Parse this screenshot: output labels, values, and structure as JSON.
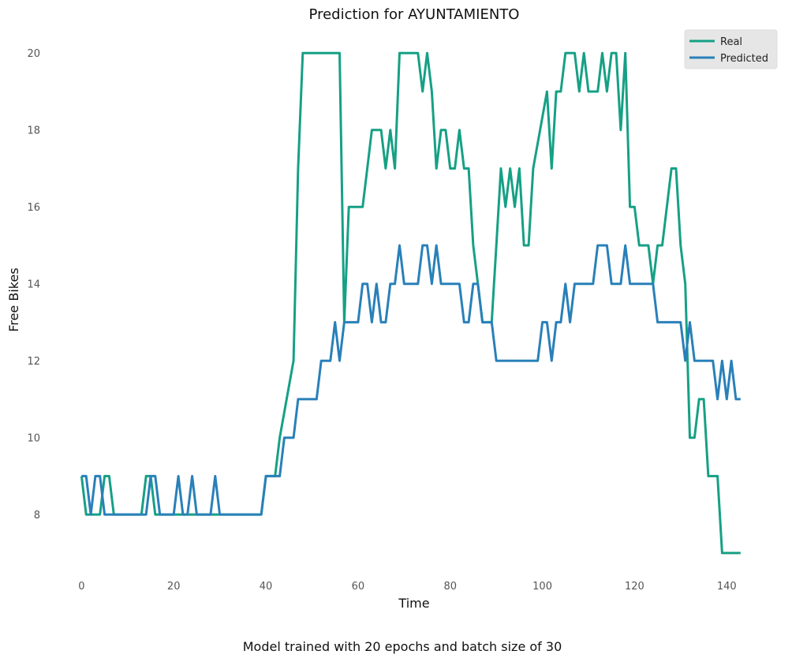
{
  "chart_data": {
    "type": "line",
    "title": "Prediction for AYUNTAMIENTO",
    "xlabel": "Time",
    "ylabel": "Free Bikes",
    "caption": "Model trained with 20 epochs and batch size of 30",
    "xlim": [
      -4,
      148
    ],
    "ylim": [
      6.3,
      20.6
    ],
    "xticks": [
      0,
      20,
      40,
      60,
      80,
      100,
      120,
      140
    ],
    "yticks": [
      8,
      10,
      12,
      14,
      16,
      18,
      20
    ],
    "grid": false,
    "legend_position": "top-right",
    "series": [
      {
        "name": "Real",
        "color": "#16a085",
        "points": [
          [
            0,
            9
          ],
          [
            1,
            8
          ],
          [
            2,
            8
          ],
          [
            3,
            8
          ],
          [
            4,
            8
          ],
          [
            5,
            9
          ],
          [
            6,
            9
          ],
          [
            7,
            8
          ],
          [
            13,
            8
          ],
          [
            14,
            9
          ],
          [
            15,
            9
          ],
          [
            16,
            8
          ],
          [
            39,
            8
          ],
          [
            40,
            9
          ],
          [
            42,
            9
          ],
          [
            43,
            10
          ],
          [
            46,
            12
          ],
          [
            47,
            17
          ],
          [
            48,
            20
          ],
          [
            56,
            20
          ],
          [
            57,
            13
          ],
          [
            58,
            16
          ],
          [
            61,
            16
          ],
          [
            62,
            17
          ],
          [
            63,
            18
          ],
          [
            65,
            18
          ],
          [
            66,
            17
          ],
          [
            67,
            18
          ],
          [
            68,
            17
          ],
          [
            69,
            20
          ],
          [
            73,
            20
          ],
          [
            74,
            19
          ],
          [
            75,
            20
          ],
          [
            76,
            19
          ],
          [
            77,
            17
          ],
          [
            78,
            18
          ],
          [
            79,
            18
          ],
          [
            80,
            17
          ],
          [
            81,
            17
          ],
          [
            82,
            18
          ],
          [
            83,
            17
          ],
          [
            84,
            17
          ],
          [
            85,
            15
          ],
          [
            86,
            14
          ],
          [
            87,
            13
          ],
          [
            89,
            13
          ],
          [
            90,
            15
          ],
          [
            91,
            17
          ],
          [
            92,
            16
          ],
          [
            93,
            17
          ],
          [
            94,
            16
          ],
          [
            95,
            17
          ],
          [
            96,
            15
          ],
          [
            97,
            15
          ],
          [
            98,
            17
          ],
          [
            101,
            19
          ],
          [
            102,
            17
          ],
          [
            103,
            19
          ],
          [
            104,
            19
          ],
          [
            105,
            20
          ],
          [
            107,
            20
          ],
          [
            108,
            19
          ],
          [
            109,
            20
          ],
          [
            110,
            19
          ],
          [
            112,
            19
          ],
          [
            113,
            20
          ],
          [
            114,
            19
          ],
          [
            115,
            20
          ],
          [
            116,
            20
          ],
          [
            117,
            18
          ],
          [
            118,
            20
          ],
          [
            119,
            16
          ],
          [
            120,
            16
          ],
          [
            121,
            15
          ],
          [
            123,
            15
          ],
          [
            124,
            14
          ],
          [
            125,
            15
          ],
          [
            126,
            15
          ],
          [
            128,
            17
          ],
          [
            129,
            17
          ],
          [
            130,
            15
          ],
          [
            131,
            14
          ],
          [
            132,
            10
          ],
          [
            133,
            10
          ],
          [
            134,
            11
          ],
          [
            135,
            11
          ],
          [
            136,
            9
          ],
          [
            138,
            9
          ],
          [
            139,
            7
          ],
          [
            143,
            7
          ]
        ]
      },
      {
        "name": "Predicted",
        "color": "#2980b9",
        "points": [
          [
            0,
            9
          ],
          [
            1,
            9
          ],
          [
            2,
            8
          ],
          [
            3,
            9
          ],
          [
            4,
            9
          ],
          [
            5,
            8
          ],
          [
            14,
            8
          ],
          [
            15,
            9
          ],
          [
            16,
            9
          ],
          [
            17,
            8
          ],
          [
            20,
            8
          ],
          [
            21,
            9
          ],
          [
            22,
            8
          ],
          [
            23,
            8
          ],
          [
            24,
            9
          ],
          [
            25,
            8
          ],
          [
            28,
            8
          ],
          [
            29,
            9
          ],
          [
            30,
            8
          ],
          [
            39,
            8
          ],
          [
            40,
            9
          ],
          [
            43,
            9
          ],
          [
            44,
            10
          ],
          [
            46,
            10
          ],
          [
            47,
            11
          ],
          [
            51,
            11
          ],
          [
            52,
            12
          ],
          [
            54,
            12
          ],
          [
            55,
            13
          ],
          [
            56,
            12
          ],
          [
            57,
            13
          ],
          [
            60,
            13
          ],
          [
            61,
            14
          ],
          [
            62,
            14
          ],
          [
            63,
            13
          ],
          [
            64,
            14
          ],
          [
            65,
            13
          ],
          [
            66,
            13
          ],
          [
            67,
            14
          ],
          [
            68,
            14
          ],
          [
            69,
            15
          ],
          [
            70,
            14
          ],
          [
            73,
            14
          ],
          [
            74,
            15
          ],
          [
            75,
            15
          ],
          [
            76,
            14
          ],
          [
            77,
            15
          ],
          [
            78,
            14
          ],
          [
            82,
            14
          ],
          [
            83,
            13
          ],
          [
            84,
            13
          ],
          [
            85,
            14
          ],
          [
            86,
            14
          ],
          [
            87,
            13
          ],
          [
            89,
            13
          ],
          [
            90,
            12
          ],
          [
            99,
            12
          ],
          [
            100,
            13
          ],
          [
            101,
            13
          ],
          [
            102,
            12
          ],
          [
            103,
            13
          ],
          [
            104,
            13
          ],
          [
            105,
            14
          ],
          [
            106,
            13
          ],
          [
            107,
            14
          ],
          [
            111,
            14
          ],
          [
            112,
            15
          ],
          [
            114,
            15
          ],
          [
            115,
            14
          ],
          [
            117,
            14
          ],
          [
            118,
            15
          ],
          [
            119,
            14
          ],
          [
            124,
            14
          ],
          [
            125,
            13
          ],
          [
            130,
            13
          ],
          [
            131,
            12
          ],
          [
            132,
            13
          ],
          [
            133,
            12
          ],
          [
            137,
            12
          ],
          [
            138,
            11
          ],
          [
            139,
            12
          ],
          [
            140,
            11
          ],
          [
            141,
            12
          ],
          [
            142,
            11
          ],
          [
            143,
            11
          ]
        ]
      }
    ]
  }
}
